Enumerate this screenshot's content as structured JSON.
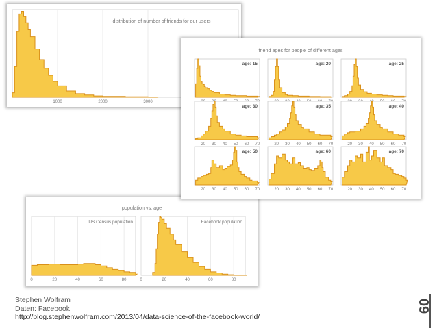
{
  "colors": {
    "fill": "#f7c948",
    "stroke": "#d9901a",
    "frame": "#cccccc",
    "grid": "#e3e3e3",
    "text": "#777777"
  },
  "chart_data": [
    {
      "type": "area",
      "title": "distribution of number of friends for our users",
      "x_ticks": [
        1000,
        2000,
        3000
      ],
      "xlim": [
        0,
        5000
      ],
      "ylim": [
        0,
        1
      ],
      "x": [
        0,
        50,
        100,
        150,
        200,
        250,
        300,
        350,
        400,
        500,
        600,
        700,
        800,
        900,
        1000,
        1200,
        1400,
        1600,
        1800,
        2000,
        2500,
        3000,
        3200
      ],
      "values": [
        0.05,
        0.35,
        0.75,
        0.95,
        0.98,
        0.92,
        0.85,
        0.77,
        0.69,
        0.55,
        0.43,
        0.33,
        0.25,
        0.18,
        0.13,
        0.07,
        0.04,
        0.025,
        0.015,
        0.01,
        0.006,
        0.004,
        0.003
      ]
    },
    {
      "type": "area",
      "title": "friend ages for people of different ages",
      "x_ticks": [
        20,
        30,
        40,
        50,
        60,
        70
      ],
      "xlim": [
        12,
        72
      ],
      "ylim": [
        0,
        1
      ],
      "panels": [
        {
          "label": "age: 15",
          "x": [
            13,
            14,
            15,
            16,
            17,
            18,
            19,
            20,
            21,
            22,
            24,
            26,
            28,
            30,
            35,
            40,
            45,
            50,
            60,
            70
          ],
          "values": [
            0.35,
            0.75,
            1.0,
            0.82,
            0.55,
            0.4,
            0.35,
            0.33,
            0.28,
            0.25,
            0.22,
            0.18,
            0.15,
            0.12,
            0.08,
            0.06,
            0.05,
            0.04,
            0.03,
            0.02
          ]
        },
        {
          "label": "age: 20",
          "x": [
            13,
            15,
            17,
            18,
            19,
            20,
            21,
            22,
            23,
            25,
            28,
            30,
            35,
            40,
            50,
            60,
            70
          ],
          "values": [
            0.02,
            0.05,
            0.15,
            0.45,
            0.8,
            1.0,
            0.8,
            0.45,
            0.25,
            0.12,
            0.07,
            0.05,
            0.04,
            0.03,
            0.02,
            0.015,
            0.01
          ]
        },
        {
          "label": "age: 25",
          "x": [
            13,
            15,
            18,
            20,
            22,
            23,
            24,
            25,
            26,
            27,
            28,
            30,
            33,
            36,
            40,
            45,
            50,
            55,
            60,
            70
          ],
          "values": [
            0.02,
            0.04,
            0.08,
            0.15,
            0.3,
            0.55,
            0.85,
            1.0,
            0.8,
            0.5,
            0.32,
            0.2,
            0.14,
            0.1,
            0.08,
            0.06,
            0.05,
            0.04,
            0.03,
            0.02
          ]
        },
        {
          "label": "age: 30",
          "x": [
            13,
            15,
            18,
            20,
            22,
            25,
            27,
            28,
            29,
            30,
            31,
            32,
            33,
            35,
            38,
            40,
            45,
            50,
            55,
            60,
            70
          ],
          "values": [
            0.03,
            0.05,
            0.1,
            0.15,
            0.22,
            0.35,
            0.55,
            0.75,
            0.92,
            1.0,
            0.85,
            0.62,
            0.45,
            0.35,
            0.28,
            0.22,
            0.15,
            0.12,
            0.1,
            0.08,
            0.05
          ]
        },
        {
          "label": "age: 35",
          "x": [
            13,
            15,
            18,
            20,
            23,
            25,
            28,
            30,
            32,
            33,
            34,
            35,
            36,
            37,
            38,
            40,
            43,
            45,
            50,
            55,
            60,
            70
          ],
          "values": [
            0.05,
            0.08,
            0.12,
            0.15,
            0.2,
            0.25,
            0.33,
            0.42,
            0.55,
            0.7,
            0.88,
            1.0,
            0.85,
            0.65,
            0.5,
            0.4,
            0.32,
            0.28,
            0.2,
            0.15,
            0.12,
            0.08
          ]
        },
        {
          "label": "age: 40",
          "x": [
            13,
            15,
            18,
            20,
            25,
            30,
            33,
            35,
            37,
            38,
            39,
            40,
            41,
            42,
            43,
            45,
            48,
            50,
            55,
            60,
            65,
            70
          ],
          "values": [
            0.1,
            0.15,
            0.18,
            0.2,
            0.22,
            0.28,
            0.35,
            0.42,
            0.55,
            0.7,
            0.88,
            1.0,
            0.85,
            0.65,
            0.5,
            0.4,
            0.32,
            0.28,
            0.2,
            0.15,
            0.12,
            0.08
          ]
        },
        {
          "label": "age: 50",
          "x": [
            13,
            15,
            18,
            20,
            23,
            25,
            27,
            28,
            30,
            32,
            35,
            38,
            40,
            42,
            45,
            47,
            48,
            49,
            50,
            51,
            52,
            53,
            55,
            58,
            60,
            63,
            65,
            70
          ],
          "values": [
            0.12,
            0.18,
            0.22,
            0.25,
            0.28,
            0.3,
            0.45,
            0.65,
            0.55,
            0.45,
            0.5,
            0.4,
            0.42,
            0.48,
            0.52,
            0.65,
            0.85,
            1.0,
            0.9,
            0.6,
            0.45,
            0.35,
            0.28,
            0.22,
            0.18,
            0.12,
            0.1,
            0.06
          ]
        },
        {
          "label": "age: 60",
          "x": [
            13,
            15,
            18,
            20,
            22,
            25,
            28,
            30,
            32,
            35,
            37,
            40,
            42,
            45,
            48,
            50,
            52,
            55,
            58,
            60,
            61,
            62,
            63,
            65,
            68,
            70
          ],
          "values": [
            0.15,
            0.3,
            0.55,
            0.75,
            0.7,
            0.8,
            0.65,
            0.6,
            0.55,
            0.7,
            0.55,
            0.58,
            0.5,
            0.42,
            0.45,
            0.4,
            0.38,
            0.42,
            0.5,
            0.65,
            0.6,
            0.45,
            0.35,
            0.2,
            0.12,
            0.08
          ]
        },
        {
          "label": "age: 70",
          "x": [
            13,
            15,
            18,
            20,
            22,
            25,
            27,
            30,
            32,
            35,
            37,
            38,
            40,
            42,
            45,
            48,
            50,
            52,
            55,
            58,
            60,
            62,
            65,
            68,
            70,
            72
          ],
          "values": [
            0.2,
            0.35,
            0.5,
            0.65,
            0.6,
            0.75,
            0.7,
            0.8,
            0.6,
            0.85,
            1.0,
            0.65,
            0.75,
            0.9,
            0.7,
            0.6,
            0.7,
            0.5,
            0.45,
            0.4,
            0.3,
            0.28,
            0.25,
            0.22,
            0.18,
            0.12
          ]
        }
      ]
    },
    {
      "type": "area",
      "title": "population vs. age",
      "x_ticks": [
        0,
        20,
        40,
        60,
        80
      ],
      "xlim": [
        0,
        90
      ],
      "ylim": [
        0,
        1
      ],
      "panels": [
        {
          "label": "US Census population",
          "x": [
            0,
            5,
            10,
            15,
            20,
            25,
            30,
            35,
            40,
            45,
            50,
            55,
            60,
            65,
            70,
            75,
            80,
            85,
            90
          ],
          "values": [
            0.17,
            0.18,
            0.18,
            0.19,
            0.19,
            0.18,
            0.18,
            0.18,
            0.19,
            0.2,
            0.2,
            0.18,
            0.16,
            0.13,
            0.1,
            0.08,
            0.06,
            0.05,
            0.02
          ]
        },
        {
          "label": "Facebook population",
          "x": [
            10,
            12,
            13,
            14,
            15,
            16,
            17,
            18,
            20,
            22,
            25,
            28,
            30,
            35,
            40,
            45,
            50,
            55,
            60,
            65,
            70,
            75,
            80,
            90
          ],
          "values": [
            0.05,
            0.2,
            0.45,
            0.7,
            0.9,
            1.0,
            0.98,
            0.95,
            0.88,
            0.8,
            0.7,
            0.6,
            0.52,
            0.4,
            0.3,
            0.22,
            0.15,
            0.1,
            0.06,
            0.04,
            0.02,
            0.01,
            0.005,
            0
          ]
        }
      ]
    }
  ],
  "credits": {
    "author": "Stephen Wolfram",
    "source": "Daten: Facebook",
    "url": "http://blog.stephenwolfram.com/2013/04/data-science-of-the-facebook-world/"
  },
  "page_number": "60"
}
